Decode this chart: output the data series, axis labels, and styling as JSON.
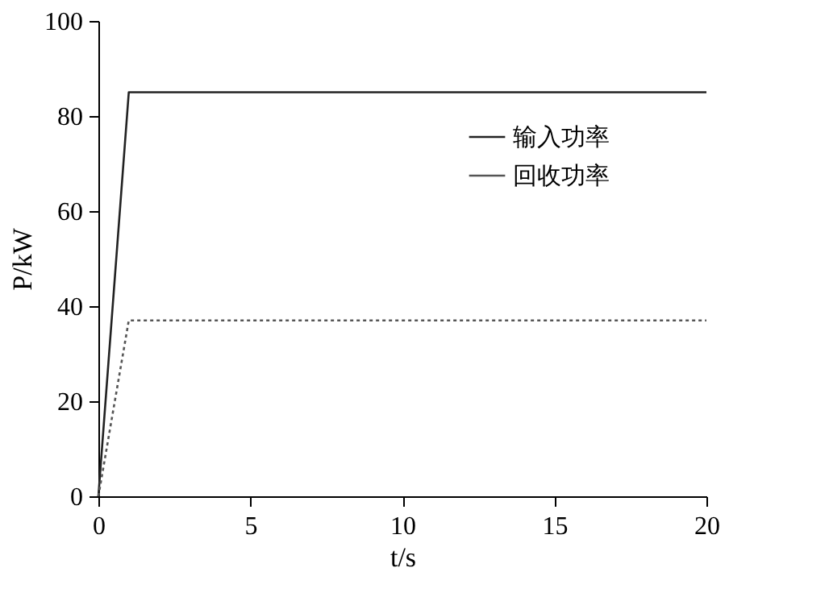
{
  "chart_data": {
    "type": "line",
    "xlabel": "t/s",
    "ylabel": "P/kW",
    "xlim": [
      0,
      20
    ],
    "xticks": [
      0,
      5,
      10,
      15,
      20
    ],
    "ylim": [
      0,
      100
    ],
    "yticks": [
      0,
      20,
      40,
      60,
      80,
      100
    ],
    "grid": false,
    "legend": "top right",
    "marker": "none",
    "series": [
      {
        "name": "输入功率",
        "color": "#222222",
        "line_style": "solid",
        "x": [
          0,
          1,
          20
        ],
        "values": [
          0,
          85,
          85
        ]
      },
      {
        "name": "回收功率",
        "color": "#555555",
        "line_style": "dotted",
        "x": [
          0,
          1,
          20
        ],
        "values": [
          0,
          37,
          37
        ]
      }
    ]
  }
}
